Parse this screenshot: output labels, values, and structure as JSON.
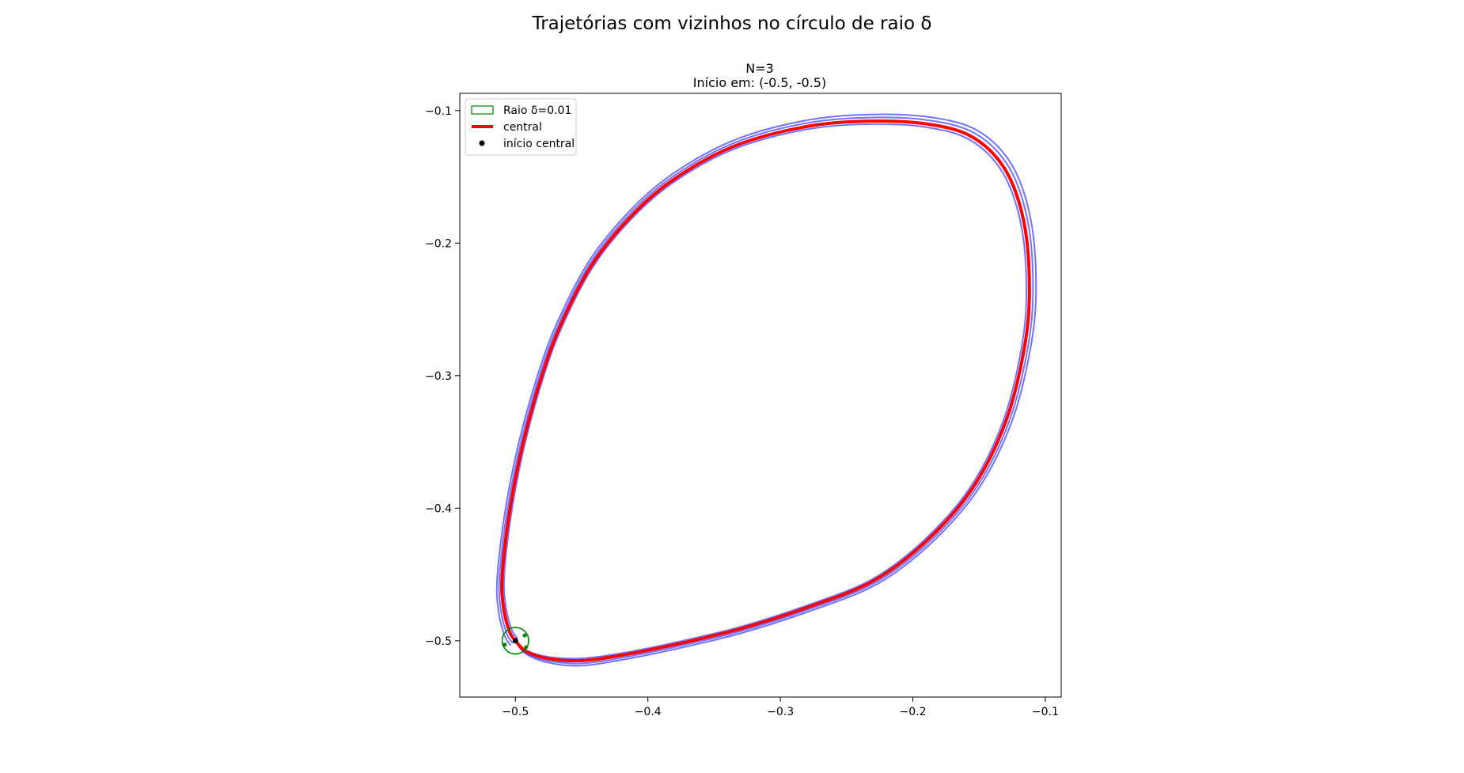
{
  "figure": {
    "suptitle": "Trajetórias com vizinhos no círculo de raio δ"
  },
  "chart_data": {
    "type": "line",
    "title_line1": "N=3",
    "title_line2": "Início em: (-0.5, -0.5)",
    "xlim": [
      -0.542,
      -0.088
    ],
    "ylim": [
      -0.5425,
      -0.087
    ],
    "xticks": [
      -0.5,
      -0.4,
      -0.3,
      -0.2,
      -0.1
    ],
    "xtick_labels": [
      "−0.5",
      "−0.4",
      "−0.3",
      "−0.2",
      "−0.1"
    ],
    "yticks": [
      -0.1,
      -0.2,
      -0.3,
      -0.4,
      -0.5
    ],
    "ytick_labels": [
      "−0.1",
      "−0.2",
      "−0.3",
      "−0.4",
      "−0.5"
    ],
    "grid": false,
    "legend_placement": "upper left",
    "legend": [
      {
        "label": "Raio δ=0.01",
        "kind": "patch",
        "color": "#008000"
      },
      {
        "label": "central",
        "kind": "line",
        "color": "#ff0000"
      },
      {
        "label": "início central",
        "kind": "marker",
        "color": "#000000"
      }
    ],
    "colors": {
      "central": "#ff0000",
      "neighbors": "#0000ff",
      "circle": "#008000",
      "start": "#000000"
    },
    "circle": {
      "center": [
        -0.5,
        -0.5
      ],
      "radius": 0.01
    },
    "start_point": [
      -0.5,
      -0.5
    ],
    "series": [
      {
        "name": "central",
        "points": [
          [
            -0.5,
            -0.5
          ],
          [
            -0.492,
            -0.508
          ],
          [
            -0.475,
            -0.5135
          ],
          [
            -0.45,
            -0.515
          ],
          [
            -0.42,
            -0.511
          ],
          [
            -0.38,
            -0.503
          ],
          [
            -0.33,
            -0.491
          ],
          [
            -0.28,
            -0.475
          ],
          [
            -0.23,
            -0.455
          ],
          [
            -0.19,
            -0.425
          ],
          [
            -0.155,
            -0.385
          ],
          [
            -0.13,
            -0.335
          ],
          [
            -0.116,
            -0.28
          ],
          [
            -0.112,
            -0.235
          ],
          [
            -0.116,
            -0.185
          ],
          [
            -0.13,
            -0.145
          ],
          [
            -0.155,
            -0.12
          ],
          [
            -0.19,
            -0.11
          ],
          [
            -0.235,
            -0.108
          ],
          [
            -0.28,
            -0.112
          ],
          [
            -0.33,
            -0.125
          ],
          [
            -0.37,
            -0.145
          ],
          [
            -0.405,
            -0.172
          ],
          [
            -0.44,
            -0.213
          ],
          [
            -0.465,
            -0.26
          ],
          [
            -0.48,
            -0.3
          ],
          [
            -0.494,
            -0.35
          ],
          [
            -0.504,
            -0.4
          ],
          [
            -0.51,
            -0.45
          ],
          [
            -0.509,
            -0.475
          ],
          [
            -0.5045,
            -0.493
          ],
          [
            -0.5,
            -0.5
          ]
        ]
      },
      {
        "name": "",
        "offset": [
          0.0,
          0.0
        ],
        "scale": 1.012
      },
      {
        "name": "",
        "offset": [
          0.0,
          0.0
        ],
        "scale": 0.99
      },
      {
        "name": "",
        "offset": [
          0.0,
          0.0
        ],
        "scale": 1.022
      }
    ]
  }
}
